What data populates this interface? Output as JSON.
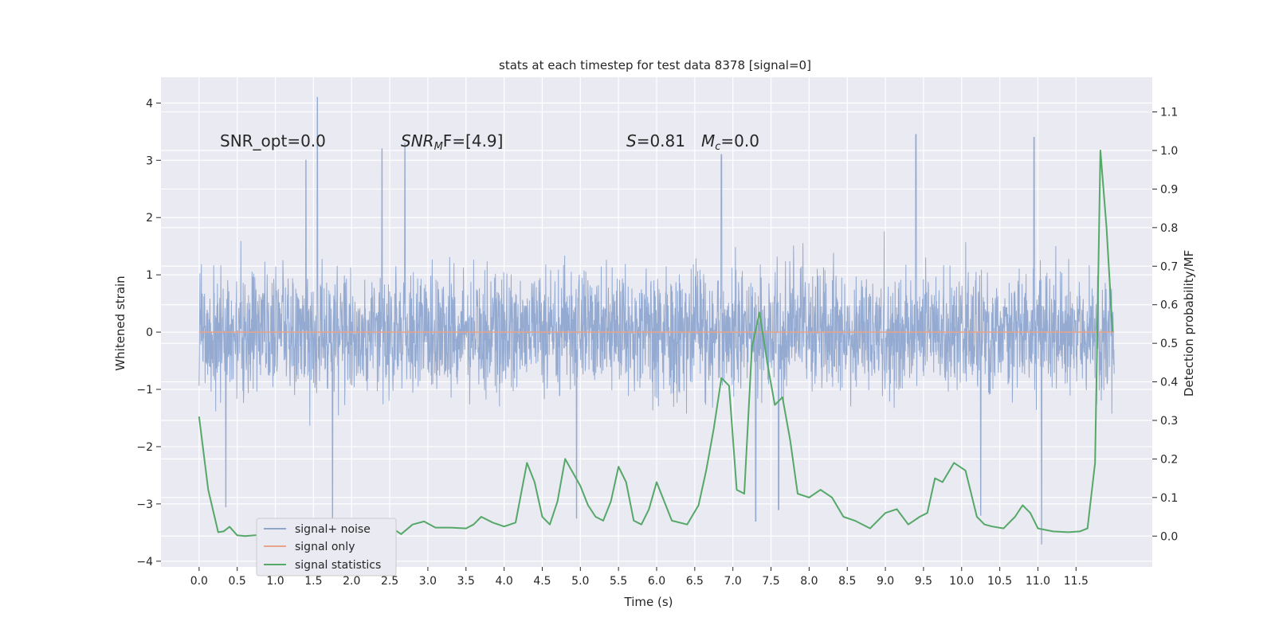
{
  "chart_data": {
    "type": "line",
    "title": "stats at each timestep for test data 8378 [signal=0]",
    "xlabel": "Time (s)",
    "ylabel": "Whitened strain",
    "y2label": "Detection probability/MF",
    "xlim": [
      -0.5,
      12.5
    ],
    "ylim": [
      -4.1,
      4.45
    ],
    "y2lim": [
      -0.08,
      1.19
    ],
    "grid": true,
    "legend_position": "lower-left",
    "x_ticks": [
      0.0,
      0.5,
      1.0,
      1.5,
      2.0,
      2.5,
      3.0,
      3.5,
      4.0,
      4.5,
      5.0,
      5.5,
      6.0,
      6.5,
      7.0,
      7.5,
      8.0,
      8.5,
      9.0,
      9.5,
      10.0,
      10.5,
      11.0,
      11.5
    ],
    "x_tick_labels": [
      "0.0",
      "0.5",
      "1.0",
      "1.5",
      "2.0",
      "2.5",
      "3.0",
      "3.5",
      "4.0",
      "4.5",
      "5.0",
      "5.5",
      "6.0",
      "6.5",
      "7.0",
      "7.5",
      "8.0",
      "8.5",
      "9.0",
      "9.5",
      "10.0",
      "10.5",
      "11.0",
      "11.5"
    ],
    "y_ticks": [
      -4,
      -3,
      -2,
      -1,
      0,
      1,
      2,
      3,
      4
    ],
    "y_tick_labels": [
      "−4",
      "−3",
      "−2",
      "−1",
      "0",
      "1",
      "2",
      "3",
      "4"
    ],
    "y2_ticks": [
      0.0,
      0.1,
      0.2,
      0.3,
      0.4,
      0.5,
      0.6,
      0.7,
      0.8,
      0.9,
      1.0,
      1.1
    ],
    "y2_tick_labels": [
      "0.0",
      "0.1",
      "0.2",
      "0.3",
      "0.4",
      "0.5",
      "0.6",
      "0.7",
      "0.8",
      "0.9",
      "1.0",
      "1.1"
    ],
    "annotations": {
      "snr_opt": "SNR_opt=0.0",
      "snr_mf_main": "SNR",
      "snr_mf_sub": "M",
      "snr_mf_rest": "F=[4.9]",
      "s_italic": "S",
      "s_rest": "=0.81",
      "mc_main": "M",
      "mc_sub": "c",
      "mc_rest": "=0.0"
    },
    "series": [
      {
        "name": "signal+ noise",
        "color": "#8fa6cf",
        "x_range": [
          0.0,
          12.0
        ],
        "envelope": {
          "typical_abs": 1.4,
          "peaks": [
            {
              "x": 1.55,
              "y": 4.1
            },
            {
              "x": 1.4,
              "y": 3.0
            },
            {
              "x": 2.4,
              "y": 3.2
            },
            {
              "x": 2.7,
              "y": 3.3
            },
            {
              "x": 6.85,
              "y": 3.1
            },
            {
              "x": 9.4,
              "y": 3.45
            },
            {
              "x": 10.95,
              "y": 3.4
            },
            {
              "x": 1.75,
              "y": -3.3
            },
            {
              "x": 4.95,
              "y": -3.25
            },
            {
              "x": 7.3,
              "y": -3.3
            },
            {
              "x": 7.6,
              "y": -3.1
            },
            {
              "x": 10.25,
              "y": -3.2
            },
            {
              "x": 11.05,
              "y": -3.7
            },
            {
              "x": 0.35,
              "y": -3.05
            }
          ]
        }
      },
      {
        "name": "signal only",
        "color": "#e8a48a",
        "x": [
          0.0,
          12.0
        ],
        "values": [
          0.0,
          0.0
        ]
      },
      {
        "name": "signal statistics",
        "color": "#55a868",
        "axis": "right",
        "x": [
          0.0,
          0.12,
          0.25,
          0.32,
          0.4,
          0.5,
          0.6,
          0.8,
          1.0,
          1.1,
          1.2,
          1.35,
          1.5,
          1.65,
          1.8,
          1.95,
          2.1,
          2.2,
          2.35,
          2.5,
          2.65,
          2.8,
          2.95,
          3.1,
          3.3,
          3.5,
          3.6,
          3.7,
          3.85,
          4.0,
          4.15,
          4.3,
          4.4,
          4.5,
          4.6,
          4.7,
          4.8,
          5.0,
          5.1,
          5.2,
          5.3,
          5.4,
          5.5,
          5.6,
          5.7,
          5.8,
          5.9,
          6.0,
          6.2,
          6.4,
          6.55,
          6.65,
          6.75,
          6.85,
          6.95,
          7.05,
          7.15,
          7.25,
          7.35,
          7.45,
          7.55,
          7.65,
          7.75,
          7.85,
          8.0,
          8.15,
          8.3,
          8.45,
          8.6,
          8.8,
          9.0,
          9.15,
          9.3,
          9.45,
          9.55,
          9.65,
          9.75,
          9.9,
          10.05,
          10.2,
          10.3,
          10.4,
          10.55,
          10.7,
          10.8,
          10.9,
          11.0,
          11.2,
          11.4,
          11.55,
          11.65,
          11.75,
          11.82,
          11.9,
          11.98
        ],
        "values": [
          0.31,
          0.12,
          0.01,
          0.012,
          0.024,
          0.002,
          0.0,
          0.003,
          0.001,
          0.005,
          0.01,
          0.0,
          0.012,
          0.004,
          0.016,
          0.008,
          0.018,
          0.01,
          0.015,
          0.025,
          0.005,
          0.03,
          0.038,
          0.022,
          0.022,
          0.02,
          0.03,
          0.05,
          0.035,
          0.025,
          0.035,
          0.19,
          0.14,
          0.05,
          0.03,
          0.09,
          0.2,
          0.13,
          0.08,
          0.05,
          0.04,
          0.09,
          0.18,
          0.14,
          0.04,
          0.03,
          0.07,
          0.14,
          0.04,
          0.03,
          0.08,
          0.17,
          0.28,
          0.41,
          0.39,
          0.12,
          0.11,
          0.49,
          0.58,
          0.45,
          0.34,
          0.36,
          0.25,
          0.11,
          0.1,
          0.12,
          0.1,
          0.05,
          0.04,
          0.02,
          0.06,
          0.07,
          0.03,
          0.05,
          0.06,
          0.15,
          0.14,
          0.19,
          0.17,
          0.05,
          0.03,
          0.025,
          0.02,
          0.05,
          0.08,
          0.06,
          0.02,
          0.012,
          0.01,
          0.012,
          0.02,
          0.19,
          1.0,
          0.8,
          0.53
        ]
      }
    ]
  }
}
